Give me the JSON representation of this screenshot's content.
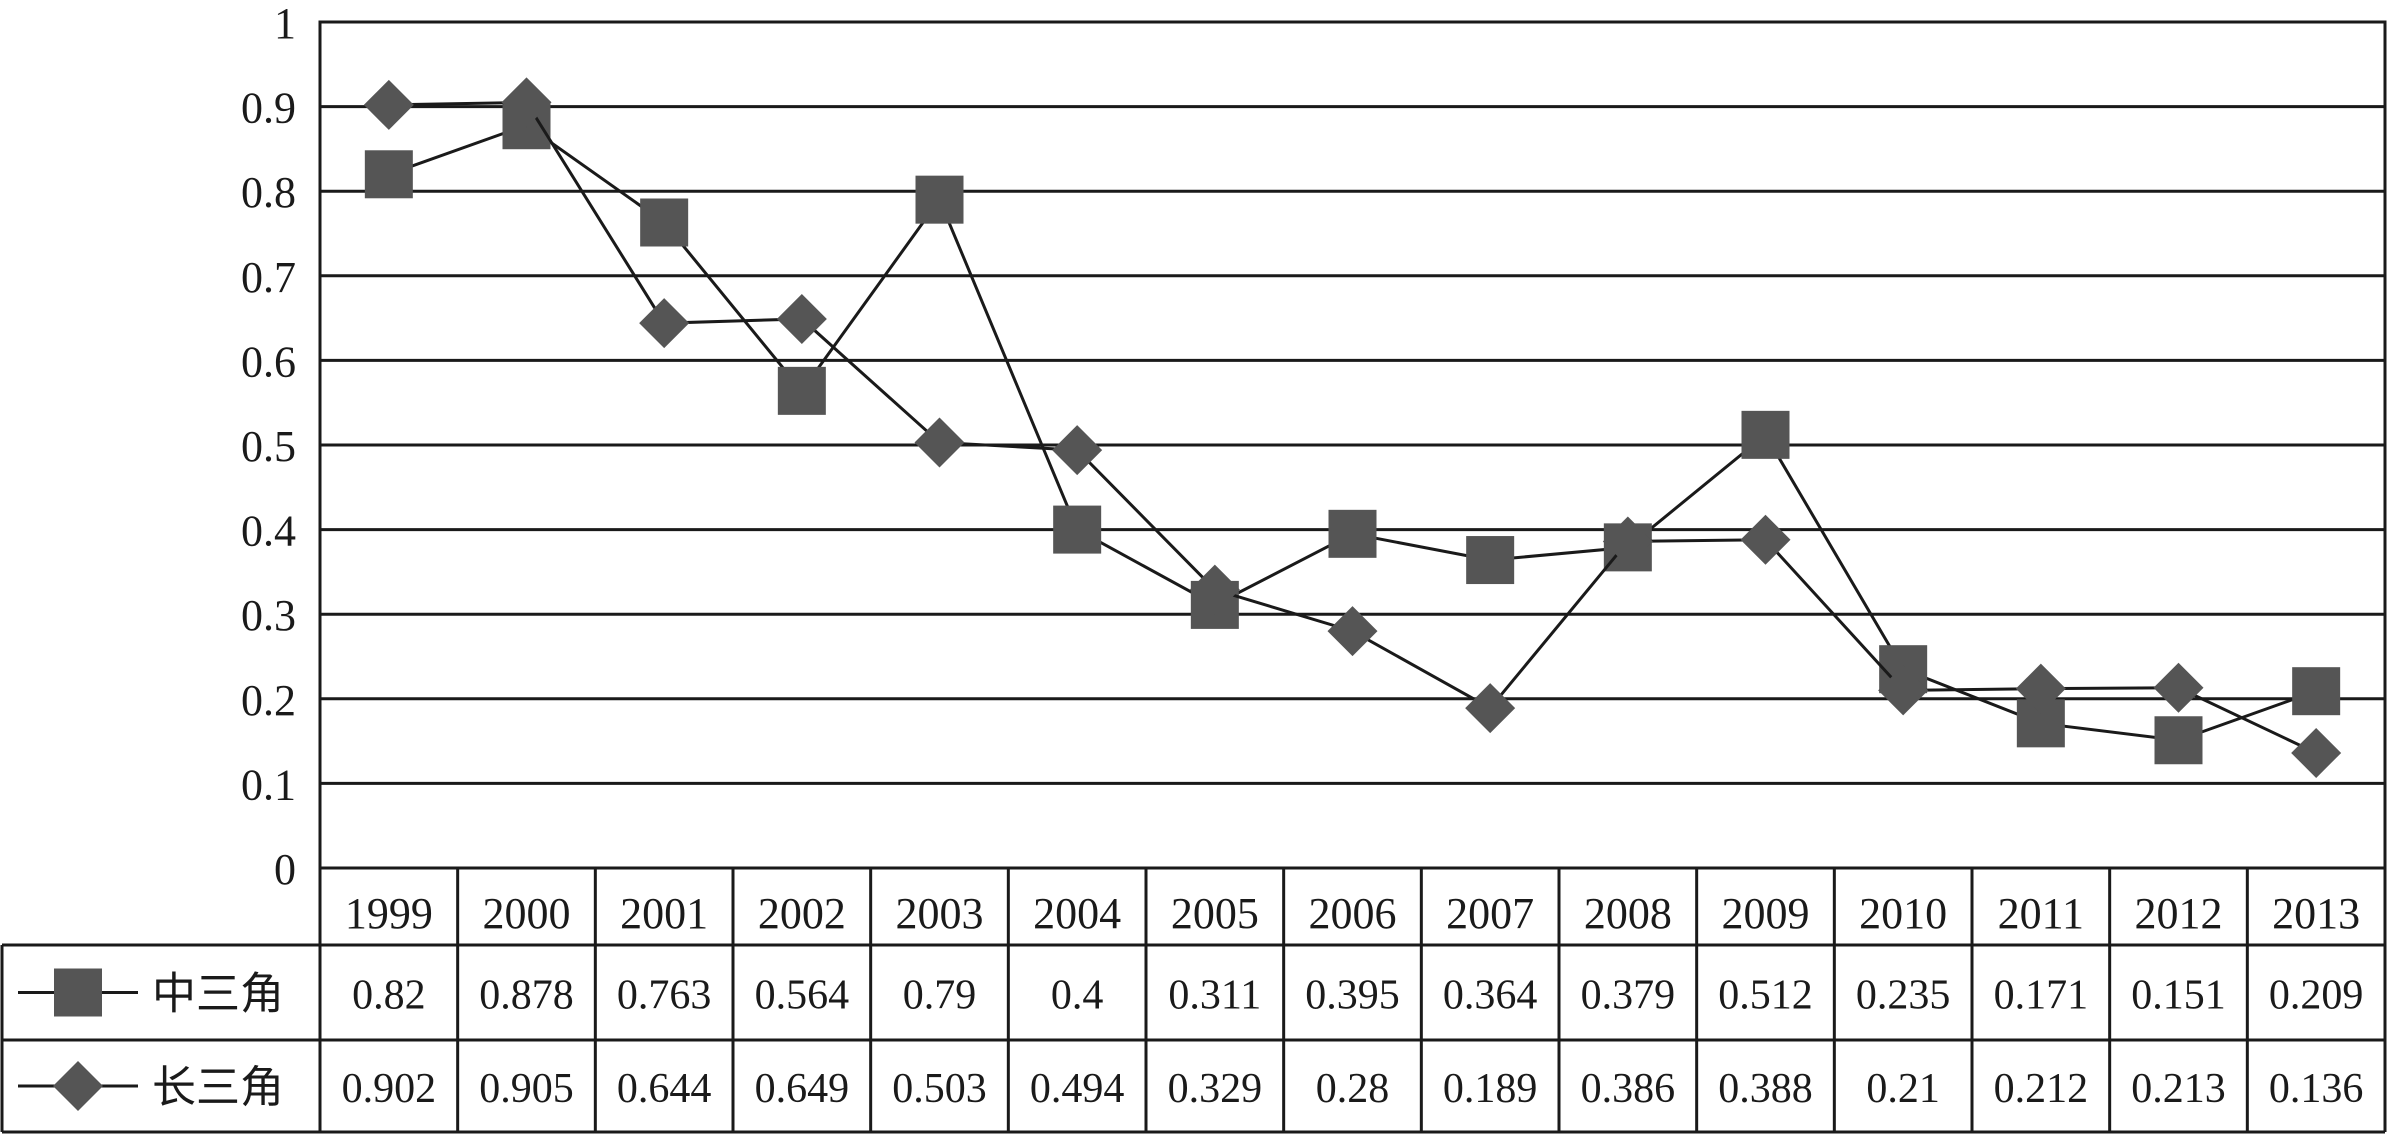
{
  "chart_data": {
    "type": "line",
    "title": "",
    "xlabel": "",
    "ylabel": "",
    "ylim": [
      0,
      1
    ],
    "yticks": [
      "0",
      "0.1",
      "0.2",
      "0.3",
      "0.4",
      "0.5",
      "0.6",
      "0.7",
      "0.8",
      "0.9",
      "1"
    ],
    "categories": [
      "1999",
      "2000",
      "2001",
      "2002",
      "2003",
      "2004",
      "2005",
      "2006",
      "2007",
      "2008",
      "2009",
      "2010",
      "2011",
      "2012",
      "2013"
    ],
    "grid": true,
    "legend": "data-table-rows",
    "series": [
      {
        "name": "中三角",
        "marker": "square",
        "color": "#555555",
        "values": [
          0.82,
          0.878,
          0.763,
          0.564,
          0.79,
          0.4,
          0.311,
          0.395,
          0.364,
          0.379,
          0.512,
          0.235,
          0.171,
          0.151,
          0.209
        ],
        "labels": [
          "0.82",
          "0.878",
          "0.763",
          "0.564",
          "0.79",
          "0.4",
          "0.311",
          "0.395",
          "0.364",
          "0.379",
          "0.512",
          "0.235",
          "0.171",
          "0.151",
          "0.209"
        ]
      },
      {
        "name": "长三角",
        "marker": "diamond",
        "color": "#555555",
        "values": [
          0.902,
          0.905,
          0.644,
          0.649,
          0.503,
          0.494,
          0.329,
          0.28,
          0.189,
          0.386,
          0.388,
          0.21,
          0.212,
          0.213,
          0.136
        ],
        "labels": [
          "0.902",
          "0.905",
          "0.644",
          "0.649",
          "0.503",
          "0.494",
          "0.329",
          "0.28",
          "0.189",
          "0.386",
          "0.388",
          "0.21",
          "0.212",
          "0.213",
          "0.136"
        ]
      }
    ]
  }
}
